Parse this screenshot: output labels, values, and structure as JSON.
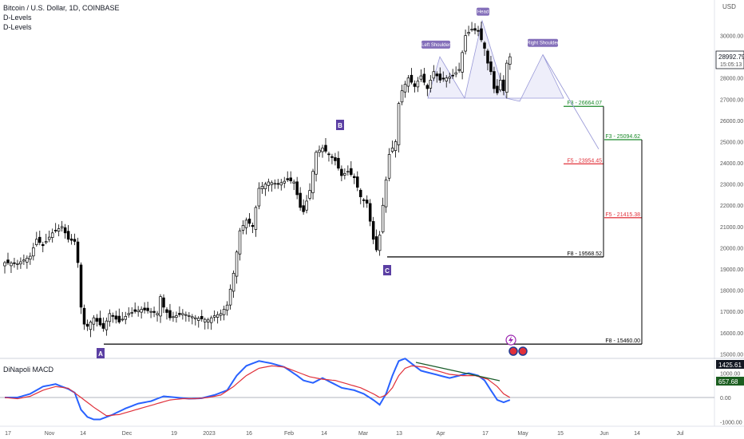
{
  "header": {
    "symbol_title": "Bitcoin / U.S. Dollar, 1D, COINBASE",
    "indicator_1": "D-Levels",
    "indicator_2": "D-Levels",
    "currency": "USD"
  },
  "price_badge": {
    "value": "28992.79",
    "countdown": "15:05:13"
  },
  "macd": {
    "title": "DiNapoli MACD",
    "badge_top": "1425.61",
    "badge_bottom": "657.68"
  },
  "colors": {
    "candle": "#000000",
    "macd_line": "#2962ff",
    "signal_line": "#e0303a",
    "f3": "#1b8a2a",
    "f5": "#e0303a",
    "f8": "#000000",
    "pattern": "#9a9ad8",
    "label_bg": "#5b3fa3"
  },
  "chart_data": {
    "type": "candlestick",
    "x_ticks": [
      "17",
      "Nov",
      "14",
      "Dec",
      "19",
      "2023",
      "16",
      "Feb",
      "14",
      "Mar",
      "13",
      "Apr",
      "17",
      "May",
      "15",
      "Jun",
      "14",
      "Jul"
    ],
    "y_ticks": [
      "30000.00",
      "29000.00",
      "28000.00",
      "27000.00",
      "26000.00",
      "25000.00",
      "24000.00",
      "23000.00",
      "22000.00",
      "21000.00",
      "20000.00",
      "19000.00",
      "18000.00",
      "17000.00",
      "16000.00",
      "15000.00"
    ],
    "y_range": [
      14900,
      31300
    ],
    "macd_y_ticks": [
      "1000.00",
      "0.00",
      "-1000.00"
    ],
    "pattern_labels": {
      "head": "Head",
      "left_shoulder": "Left Shoulder",
      "right_shoulder": "Right Shoulder"
    },
    "points": [
      {
        "label": "A",
        "price": 15460
      },
      {
        "label": "B",
        "price": 25200
      },
      {
        "label": "C",
        "price": 19568.52
      }
    ],
    "levels": [
      {
        "label": "F3 - 26664.07",
        "price": 26664.07
      },
      {
        "label": "F5 - 23954.45",
        "price": 23954.45
      },
      {
        "label": "F8 - 19568.52",
        "price": 19568.52
      },
      {
        "label": "F3 - 25094.62",
        "price": 25094.62
      },
      {
        "label": "F5 - 21415.38",
        "price": 21415.38
      },
      {
        "label": "F8 - 15460.00",
        "price": 15460.0
      }
    ],
    "close_keyframes": [
      [
        0,
        19300
      ],
      [
        4,
        19250
      ],
      [
        8,
        19600
      ],
      [
        10,
        20400
      ],
      [
        12,
        20100
      ],
      [
        15,
        20700
      ],
      [
        18,
        21000
      ],
      [
        20,
        20400
      ],
      [
        22,
        20300
      ],
      [
        23,
        19300
      ],
      [
        24,
        17200
      ],
      [
        25,
        16400
      ],
      [
        26,
        16300
      ],
      [
        28,
        16700
      ],
      [
        31,
        16200
      ],
      [
        33,
        16900
      ],
      [
        36,
        16500
      ],
      [
        39,
        16900
      ],
      [
        43,
        17100
      ],
      [
        46,
        17000
      ],
      [
        48,
        16900
      ],
      [
        49,
        17700
      ],
      [
        50,
        17200
      ],
      [
        52,
        16700
      ],
      [
        56,
        16900
      ],
      [
        60,
        16700
      ],
      [
        64,
        16600
      ],
      [
        66,
        16800
      ],
      [
        68,
        16900
      ],
      [
        70,
        17300
      ],
      [
        72,
        18800
      ],
      [
        74,
        20800
      ],
      [
        76,
        21300
      ],
      [
        78,
        21000
      ],
      [
        80,
        22800
      ],
      [
        83,
        23100
      ],
      [
        86,
        23000
      ],
      [
        89,
        23200
      ],
      [
        91,
        23100
      ],
      [
        93,
        21900
      ],
      [
        94,
        21700
      ],
      [
        96,
        22700
      ],
      [
        98,
        24500
      ],
      [
        100,
        24700
      ],
      [
        102,
        24400
      ],
      [
        104,
        24100
      ],
      [
        106,
        23400
      ],
      [
        108,
        23600
      ],
      [
        110,
        23300
      ],
      [
        112,
        22400
      ],
      [
        114,
        22100
      ],
      [
        116,
        20400
      ],
      [
        117,
        19900
      ],
      [
        118,
        20600
      ],
      [
        119,
        22000
      ],
      [
        121,
        24400
      ],
      [
        123,
        25000
      ],
      [
        124,
        26800
      ],
      [
        125,
        27400
      ],
      [
        127,
        28000
      ],
      [
        129,
        27600
      ],
      [
        131,
        28100
      ],
      [
        133,
        27500
      ],
      [
        135,
        28300
      ],
      [
        137,
        27900
      ],
      [
        139,
        28000
      ],
      [
        141,
        28100
      ],
      [
        143,
        28400
      ],
      [
        145,
        30000
      ],
      [
        147,
        30300
      ],
      [
        149,
        30200
      ],
      [
        151,
        29400
      ],
      [
        152,
        28700
      ],
      [
        153,
        28300
      ],
      [
        154,
        27500
      ],
      [
        155,
        27300
      ],
      [
        156,
        27900
      ],
      [
        157,
        27400
      ],
      [
        158,
        28700
      ],
      [
        159,
        29000
      ]
    ],
    "series": [
      {
        "name": "",
        "keyframes": [
          [
            0,
            0
          ],
          [
            4,
            0
          ],
          [
            8,
            150
          ],
          [
            12,
            450
          ],
          [
            16,
            550
          ],
          [
            20,
            350
          ],
          [
            22,
            200
          ],
          [
            24,
            -500
          ],
          [
            26,
            -800
          ],
          [
            28,
            -900
          ],
          [
            30,
            -900
          ],
          [
            34,
            -700
          ],
          [
            38,
            -450
          ],
          [
            42,
            -250
          ],
          [
            46,
            -150
          ],
          [
            50,
            50
          ],
          [
            54,
            0
          ],
          [
            58,
            -50
          ],
          [
            62,
            -30
          ],
          [
            66,
            100
          ],
          [
            70,
            300
          ],
          [
            73,
            900
          ],
          [
            76,
            1300
          ],
          [
            80,
            1500
          ],
          [
            84,
            1400
          ],
          [
            88,
            1250
          ],
          [
            92,
            900
          ],
          [
            94,
            700
          ],
          [
            97,
            600
          ],
          [
            100,
            800
          ],
          [
            103,
            600
          ],
          [
            106,
            400
          ],
          [
            110,
            300
          ],
          [
            113,
            150
          ],
          [
            116,
            -100
          ],
          [
            118,
            -300
          ],
          [
            120,
            150
          ],
          [
            122,
            900
          ],
          [
            124,
            1500
          ],
          [
            126,
            1600
          ],
          [
            128,
            1400
          ],
          [
            131,
            1100
          ],
          [
            134,
            1000
          ],
          [
            137,
            900
          ],
          [
            140,
            800
          ],
          [
            143,
            900
          ],
          [
            146,
            1000
          ],
          [
            149,
            900
          ],
          [
            151,
            700
          ],
          [
            153,
            300
          ],
          [
            155,
            -100
          ],
          [
            157,
            -200
          ],
          [
            159,
            -100
          ]
        ]
      },
      {
        "name": "",
        "keyframes": [
          [
            0,
            0
          ],
          [
            4,
            -50
          ],
          [
            8,
            50
          ],
          [
            12,
            300
          ],
          [
            16,
            450
          ],
          [
            20,
            380
          ],
          [
            24,
            0
          ],
          [
            28,
            -400
          ],
          [
            32,
            -750
          ],
          [
            36,
            -700
          ],
          [
            40,
            -550
          ],
          [
            44,
            -400
          ],
          [
            48,
            -250
          ],
          [
            52,
            -100
          ],
          [
            56,
            -50
          ],
          [
            60,
            -50
          ],
          [
            64,
            0
          ],
          [
            68,
            100
          ],
          [
            72,
            450
          ],
          [
            76,
            900
          ],
          [
            80,
            1200
          ],
          [
            84,
            1300
          ],
          [
            88,
            1250
          ],
          [
            92,
            1050
          ],
          [
            96,
            850
          ],
          [
            100,
            750
          ],
          [
            104,
            700
          ],
          [
            108,
            550
          ],
          [
            112,
            400
          ],
          [
            116,
            150
          ],
          [
            118,
            0
          ],
          [
            120,
            100
          ],
          [
            122,
            400
          ],
          [
            124,
            900
          ],
          [
            126,
            1200
          ],
          [
            128,
            1300
          ],
          [
            132,
            1250
          ],
          [
            136,
            1100
          ],
          [
            140,
            950
          ],
          [
            144,
            900
          ],
          [
            148,
            900
          ],
          [
            152,
            750
          ],
          [
            155,
            450
          ],
          [
            157,
            150
          ],
          [
            159,
            0
          ]
        ]
      }
    ]
  }
}
